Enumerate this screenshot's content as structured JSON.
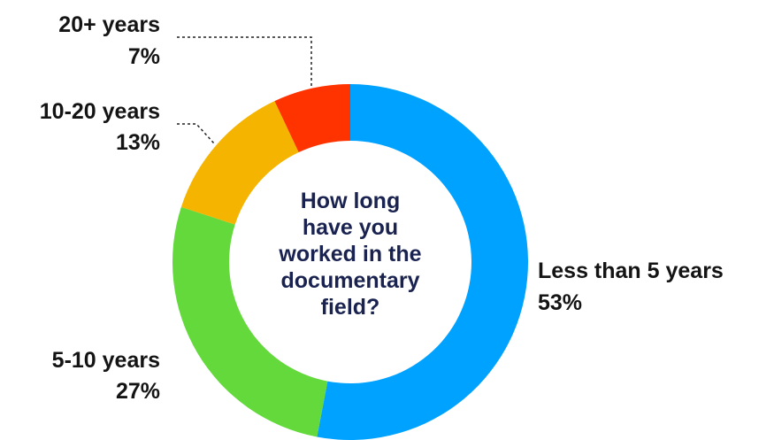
{
  "chart_data": {
    "type": "pie",
    "donut": true,
    "title_lines": [
      "How long",
      "have you",
      "worked in the",
      "documentary",
      "field?"
    ],
    "categories": [
      "Less than 5 years",
      "5-10 years",
      "10-20 years",
      "20+ years"
    ],
    "values": [
      53,
      27,
      13,
      7
    ],
    "value_labels": [
      "53%",
      "27%",
      "13%",
      "7%"
    ],
    "colors": [
      "#00a2ff",
      "#63d93b",
      "#f5b400",
      "#ff3300"
    ],
    "legend": "none"
  }
}
